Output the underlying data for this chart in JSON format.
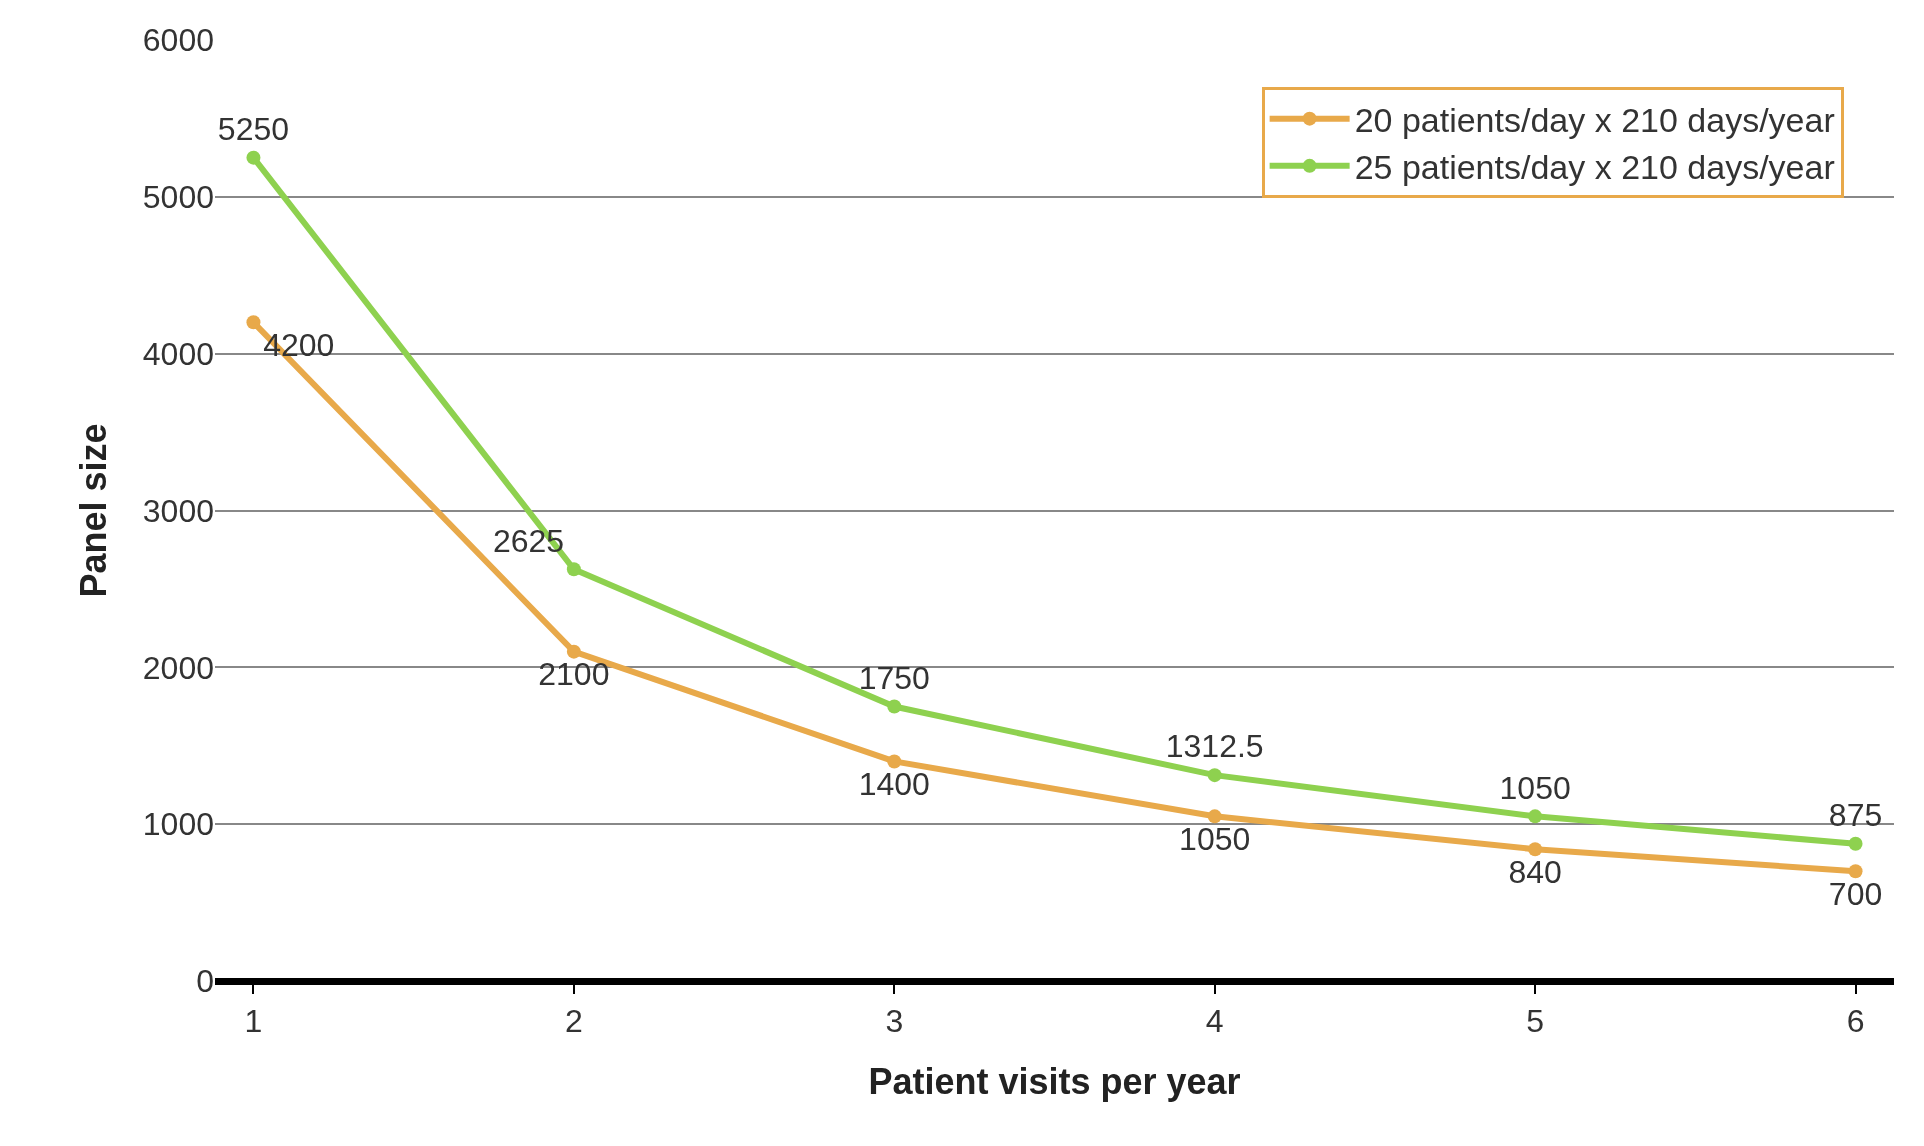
{
  "chart_data": {
    "type": "line",
    "xlabel": "Patient visits per year",
    "ylabel": "Panel size",
    "categories": [
      "1",
      "2",
      "3",
      "4",
      "5",
      "6"
    ],
    "series": [
      {
        "name": "20 patients/day x 210 days/year",
        "color": "#e8a94a",
        "values": [
          4200,
          2100,
          1400,
          1050,
          840,
          700
        ]
      },
      {
        "name": "25 patients/day x 210 days/year",
        "color": "#8ed14f",
        "values": [
          5250,
          2625,
          1750,
          1312.5,
          1050,
          875
        ]
      }
    ],
    "ylim": [
      0,
      6000
    ],
    "yticks": [
      0,
      1000,
      2000,
      3000,
      4000,
      5000,
      6000
    ],
    "grid": "y",
    "legend": "top right",
    "marker": "circle",
    "line_style": "solid",
    "data_labels": true
  }
}
